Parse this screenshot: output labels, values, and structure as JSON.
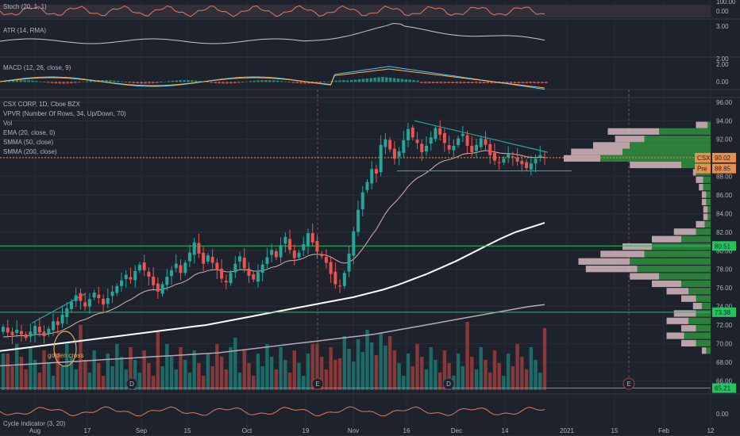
{
  "chart_data": {
    "type": "candlestick",
    "symbol_title": "CSX CORP, 1D, Cboe BZX",
    "indicator_legends": [
      "VPVR (Number Of Rows, 34, Up/Down, 70)",
      "Vol",
      "EMA (20, close, 0)",
      "SMMA (50, close)",
      "SMMA (200, close)"
    ],
    "x_ticks": [
      "Aug",
      "17",
      "Sep",
      "15",
      "Oct",
      "19",
      "Nov",
      "16",
      "Dec",
      "14",
      "2021",
      "15",
      "Feb",
      "12"
    ],
    "price_axis": {
      "ticks": [
        "96.00",
        "94.00",
        "92.00",
        "90.00",
        "88.00",
        "86.00",
        "84.00",
        "82.00",
        "80.00",
        "78.00",
        "76.00",
        "74.00",
        "72.00",
        "70.00",
        "68.00",
        "66.00"
      ],
      "ylim": [
        65,
        96.5
      ]
    },
    "tags": [
      {
        "text": "CSX",
        "value": 90.02,
        "color": "#e8904c"
      },
      {
        "text": "90.02",
        "value": 90.02,
        "color": "#e8904c"
      },
      {
        "text": "Pre",
        "value": 88.85,
        "color": "#e8904c"
      },
      {
        "text": "88.85",
        "value": 88.85,
        "color": "#e8904c"
      },
      {
        "text": "80.51",
        "value": 80.51,
        "color": "#22c55e"
      },
      {
        "text": "73.38",
        "value": 73.38,
        "color": "#22c55e"
      },
      {
        "text": "65.21",
        "value": 65.21,
        "color": "#22c55e"
      }
    ],
    "horizontal_levels": [
      80.51,
      73.38,
      65.21
    ],
    "annotations": [
      "golden cross"
    ],
    "event_markers": [
      "D",
      "E",
      "D",
      "E"
    ],
    "close_series": [
      71.8,
      71.2,
      70.9,
      71.5,
      71.0,
      70.6,
      71.3,
      71.9,
      71.2,
      70.8,
      71.6,
      72.4,
      72.0,
      73.1,
      73.8,
      74.5,
      75.2,
      74.6,
      74.0,
      74.8,
      75.5,
      74.9,
      74.2,
      74.9,
      75.6,
      76.2,
      76.8,
      77.4,
      76.9,
      77.8,
      78.5,
      77.9,
      77.2,
      76.3,
      75.6,
      76.4,
      77.2,
      77.9,
      78.6,
      77.6,
      78.7,
      79.8,
      80.9,
      79.7,
      78.6,
      79.5,
      78.7,
      77.9,
      77.0,
      76.6,
      77.6,
      78.6,
      79.4,
      78.1,
      77.3,
      76.9,
      77.7,
      78.5,
      79.3,
      80.1,
      79.3,
      80.6,
      81.5,
      80.1,
      79.2,
      79.8,
      80.7,
      81.9,
      80.9,
      79.9,
      79.4,
      78.7,
      77.5,
      76.4,
      76.2,
      77.6,
      79.7,
      82.1,
      84.4,
      86.3,
      87.4,
      88.8,
      88.3,
      91.4,
      92.0,
      90.9,
      89.9,
      90.7,
      91.9,
      93.1,
      92.2,
      91.6,
      90.6,
      91.3,
      92.2,
      93.2,
      92.5,
      91.6,
      90.9,
      91.3,
      92.1,
      92.6,
      91.3,
      90.6,
      91.4,
      92.1,
      91.4,
      90.3,
      89.7,
      89.5,
      89.9,
      90.4,
      90.1,
      89.6,
      89.3,
      88.9,
      89.4,
      89.9,
      90.3,
      90.02
    ],
    "sma50": [
      69.2,
      69.4,
      69.6,
      69.8,
      70.0,
      70.2,
      70.4,
      70.6,
      70.8,
      71.0,
      71.2,
      71.4,
      71.6,
      71.8,
      72.0,
      72.3,
      72.6,
      72.9,
      73.2,
      73.5,
      73.8,
      74.1,
      74.4,
      74.7,
      75.0,
      75.4,
      75.8,
      76.3,
      76.9,
      77.5,
      78.2,
      78.9,
      79.7,
      80.5,
      81.3,
      82.0,
      82.5,
      83.0
    ],
    "sma200": [
      67.6,
      67.7,
      67.8,
      67.9,
      68.0,
      68.1,
      68.2,
      68.3,
      68.4,
      68.5,
      68.6,
      68.7,
      68.8,
      68.9,
      69.0,
      69.2,
      69.4,
      69.6,
      69.8,
      70.0,
      70.2,
      70.4,
      70.6,
      70.8,
      71.0,
      71.3,
      71.6,
      71.9,
      72.2,
      72.5,
      72.8,
      73.1,
      73.4,
      73.7,
      74.0,
      74.2
    ]
  },
  "panels": [
    {
      "name": "Stoch",
      "legend": "Stoch (20, 1, 1)",
      "ticks": [
        "100.00",
        "0.00"
      ]
    },
    {
      "name": "ATR",
      "legend": "ATR (14, RMA)",
      "ticks": [
        "3.00",
        "2.00"
      ]
    },
    {
      "name": "MACD",
      "legend": "MACD (12, 26, close, 9)",
      "ticks": [
        "2.00",
        "0.00"
      ]
    },
    {
      "name": "Cycle",
      "legend": "Cycle Indicator (3, 20)",
      "ticks": [
        "0.00"
      ]
    }
  ],
  "colors": {
    "up": "#26a69a",
    "down": "#ef5350",
    "bg": "#1e222d",
    "grid": "#2a2e39",
    "ema": "#e0b0a8",
    "sma50": "#ffffff",
    "sma200": "#b8a8b8",
    "green_line": "#22c55e",
    "price_line": "#e8904c"
  }
}
